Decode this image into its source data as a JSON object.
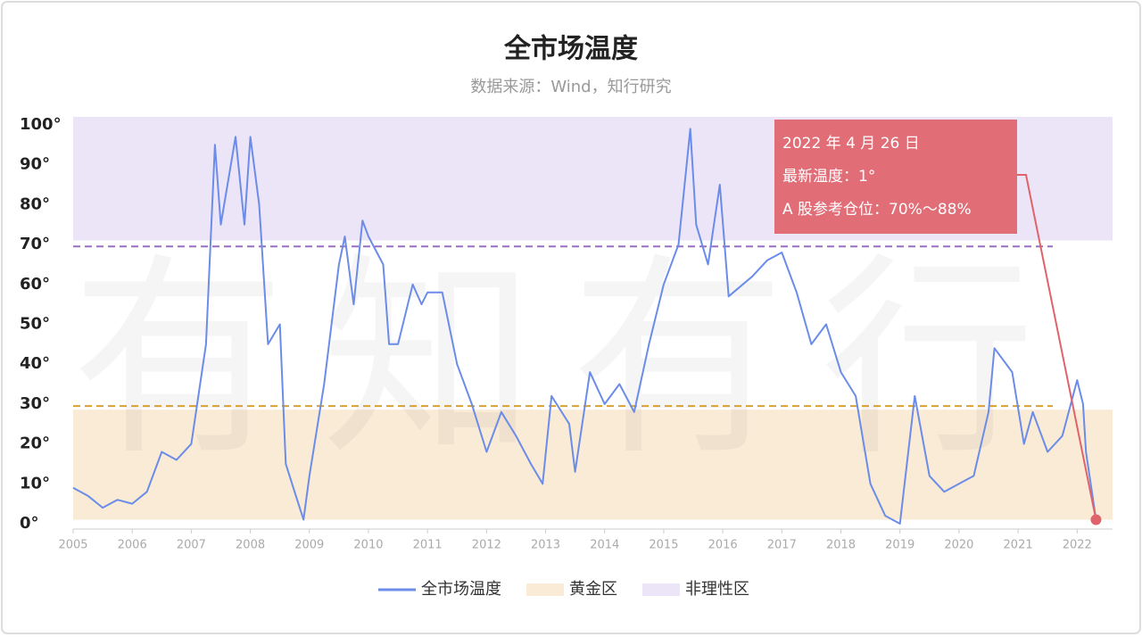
{
  "chart_data": {
    "type": "line",
    "title": "全市场温度",
    "subtitle": "数据来源：Wind，知行研究",
    "watermark": "有知有行",
    "xlim": [
      2005,
      2022.6
    ],
    "xticks": [
      2005,
      2006,
      2007,
      2008,
      2009,
      2010,
      2011,
      2012,
      2013,
      2014,
      2015,
      2016,
      2017,
      2018,
      2019,
      2020,
      2021,
      2022
    ],
    "ylim": [
      0,
      102
    ],
    "yticks": [
      {
        "value": 0,
        "label": "0°"
      },
      {
        "value": 10,
        "label": "10°"
      },
      {
        "value": 20,
        "label": "20°"
      },
      {
        "value": 30,
        "label": "30°"
      },
      {
        "value": 40,
        "label": "40°"
      },
      {
        "value": 50,
        "label": "50°"
      },
      {
        "value": 60,
        "label": "60°"
      },
      {
        "value": 70,
        "label": "70°"
      },
      {
        "value": 80,
        "label": "80°"
      },
      {
        "value": 90,
        "label": "90°"
      },
      {
        "value": 100,
        "label": "100°"
      }
    ],
    "zones": [
      {
        "name": "黄金区",
        "color": "#f9ebd6",
        "ymin": 1,
        "ymax": 28.6,
        "line": 29.5,
        "line_color": "#d9a030"
      },
      {
        "name": "非理性区",
        "color": "#ebe5f7",
        "ymin": 71,
        "ymax": 102,
        "line": 69.5,
        "line_color": "#9a6fc0"
      }
    ],
    "series": [
      {
        "name": "全市场温度",
        "color": "#6b8ce8",
        "x": [
          2005,
          2005.25,
          2005.5,
          2005.75,
          2006,
          2006.25,
          2006.5,
          2006.75,
          2007,
          2007.25,
          2007.4,
          2007.5,
          2007.75,
          2007.9,
          2008,
          2008.15,
          2008.3,
          2008.5,
          2008.6,
          2008.75,
          2008.9,
          2009,
          2009.25,
          2009.5,
          2009.6,
          2009.75,
          2009.9,
          2010,
          2010.25,
          2010.35,
          2010.5,
          2010.75,
          2010.9,
          2011,
          2011.25,
          2011.5,
          2011.75,
          2012,
          2012.25,
          2012.5,
          2012.75,
          2012.95,
          2013.1,
          2013.4,
          2013.5,
          2013.75,
          2014,
          2014.25,
          2014.5,
          2014.75,
          2015,
          2015.25,
          2015.45,
          2015.55,
          2015.75,
          2015.95,
          2016.1,
          2016.5,
          2016.75,
          2017,
          2017.25,
          2017.5,
          2017.75,
          2018,
          2018.25,
          2018.5,
          2018.75,
          2019,
          2019.25,
          2019.5,
          2019.75,
          2020,
          2020.25,
          2020.5,
          2020.6,
          2020.9,
          2021.1,
          2021.25,
          2021.5,
          2021.75,
          2022,
          2022.1,
          2022.15,
          2022.32
        ],
        "values": [
          9,
          7,
          4,
          6,
          5,
          8,
          18,
          16,
          20,
          45,
          95,
          75,
          97,
          75,
          97,
          80,
          45,
          50,
          15,
          8,
          1,
          12,
          35,
          65,
          72,
          55,
          76,
          72,
          65,
          45,
          45,
          60,
          55,
          58,
          58,
          40,
          30,
          18,
          28,
          22,
          15,
          10,
          32,
          25,
          13,
          38,
          30,
          35,
          28,
          45,
          60,
          70,
          99,
          75,
          65,
          85,
          57,
          62,
          66,
          68,
          58,
          45,
          50,
          38,
          32,
          10,
          2,
          0,
          32,
          12,
          8,
          10,
          12,
          28,
          44,
          38,
          20,
          28,
          18,
          22,
          36,
          30,
          18,
          1
        ]
      }
    ],
    "latest": {
      "x": 2022.32,
      "value": 1,
      "color": "#e0636b"
    },
    "annotation": [
      "2022 年 4 月 26 日",
      "最新温度：1°",
      "A 股参考仓位：70%～88%"
    ]
  }
}
